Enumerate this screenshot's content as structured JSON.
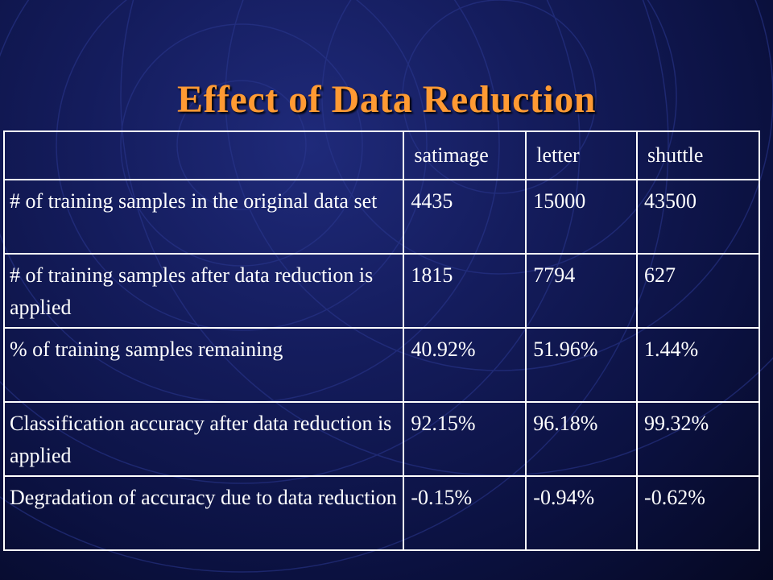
{
  "slide": {
    "title": "Effect of Data Reduction"
  },
  "table": {
    "columns": [
      "",
      "satimage",
      "letter",
      "shuttle"
    ],
    "rows": [
      {
        "label": "# of training samples in the original data set",
        "values": [
          "4435",
          "15000",
          "43500"
        ]
      },
      {
        "label": "# of training samples after data reduction is applied",
        "values": [
          "1815",
          "7794",
          "627"
        ]
      },
      {
        "label": "% of training samples remaining",
        "values": [
          "40.92%",
          "51.96%",
          "1.44%"
        ]
      },
      {
        "label": "Classification accuracy after data reduction is applied",
        "values": [
          "92.15%",
          "96.18%",
          "99.32%"
        ]
      },
      {
        "label": "Degradation of accuracy due to data reduction",
        "values": [
          "-0.15%",
          "-0.94%",
          "-0.62%"
        ]
      }
    ]
  },
  "colors": {
    "title": "#ff9a33",
    "background": "#141c5c",
    "text": "#ffffff",
    "grid": "#ffffff"
  }
}
